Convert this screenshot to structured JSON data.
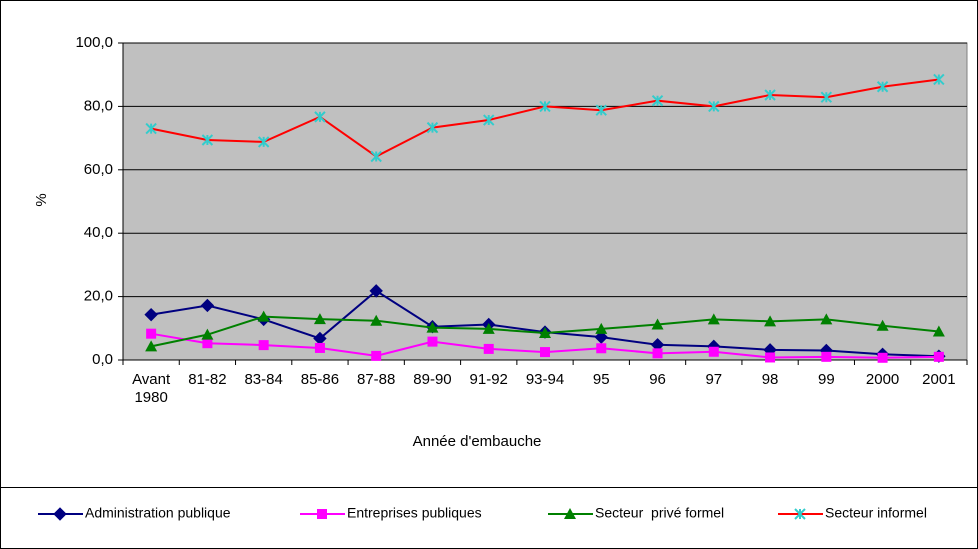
{
  "chart_data": {
    "type": "line",
    "x_label": "Année d'embauche",
    "y_label": "%",
    "categories": [
      "Avant 1980",
      "81-82",
      "83-84",
      "85-86",
      "87-88",
      "89-90",
      "91-92",
      "93-94",
      "95",
      "96",
      "97",
      "98",
      "99",
      "2000",
      "2001"
    ],
    "series": [
      {
        "name": "Administration publique",
        "color": "#000080",
        "marker_color": "#000080",
        "marker": "diamond",
        "values": [
          14.3,
          17.2,
          12.8,
          6.8,
          21.8,
          10.5,
          11.2,
          8.8,
          7.2,
          4.8,
          4.3,
          3.2,
          3.0,
          1.8,
          1.2
        ]
      },
      {
        "name": "Entreprises publiques",
        "color": "#ff00ff",
        "marker_color": "#ff00ff",
        "marker": "square",
        "values": [
          8.3,
          5.3,
          4.7,
          3.8,
          1.3,
          5.8,
          3.5,
          2.5,
          3.7,
          2.1,
          2.6,
          0.8,
          1.0,
          0.7,
          1.0
        ]
      },
      {
        "name": "Secteur  privé formel",
        "color": "#008000",
        "marker_color": "#008000",
        "marker": "triangle",
        "values": [
          4.3,
          8.0,
          13.7,
          12.9,
          12.4,
          10.2,
          9.8,
          8.5,
          9.8,
          11.2,
          12.8,
          12.2,
          12.8,
          10.8,
          9.0
        ]
      },
      {
        "name": "Secteur informel",
        "color": "#ff0000",
        "marker_color": "#33cccc",
        "marker": "star",
        "values": [
          73.0,
          69.4,
          68.8,
          76.7,
          64.2,
          73.3,
          75.7,
          80.0,
          78.8,
          81.8,
          80.0,
          83.6,
          82.9,
          86.2,
          88.5
        ]
      }
    ],
    "ylim": [
      0,
      100
    ],
    "yticks": [
      {
        "value": 0,
        "label": "0,0"
      },
      {
        "value": 20,
        "label": "20,0"
      },
      {
        "value": 40,
        "label": "40,0"
      },
      {
        "value": 60,
        "label": "60,0"
      },
      {
        "value": 80,
        "label": "80,0"
      },
      {
        "value": 100,
        "label": "100,0"
      }
    ],
    "grid": true,
    "plot_background": "#c0c0c0",
    "legend": "bottom"
  }
}
